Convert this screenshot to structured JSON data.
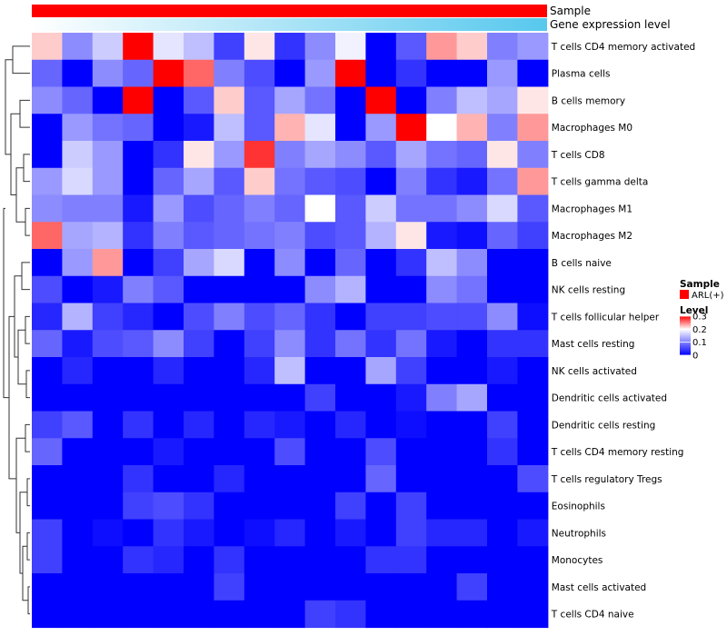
{
  "chart_data": {
    "type": "heatmap",
    "annotation_rows": [
      {
        "label": "Sample",
        "color": "#ff0000"
      },
      {
        "label": "Gene expression level",
        "colors": [
          "#ffffff",
          "#57c8ee"
        ]
      }
    ],
    "rows": [
      "T cells CD4 memory activated",
      "Plasma cells",
      "B cells memory",
      "Macrophages M0",
      "T cells CD8",
      "T cells gamma delta",
      "Macrophages M1",
      "Macrophages M2",
      "B cells naive",
      "NK cells resting",
      "T cells follicular helper",
      "Mast cells resting",
      "NK cells activated",
      "Dendritic cells activated",
      "Dendritic cells resting",
      "T cells CD4 memory resting",
      "T cells regulatory  Tregs",
      "Eosinophils",
      "Neutrophils",
      "Monocytes",
      "Mast cells activated",
      "T cells CD4 naive"
    ],
    "values": [
      [
        0.22,
        0.11,
        0.16,
        0.3,
        0.18,
        0.15,
        0.05,
        0.21,
        0.04,
        0.11,
        0.19,
        0.0,
        0.07,
        0.24,
        0.22,
        0.1,
        0.12
      ],
      [
        0.08,
        0.0,
        0.11,
        0.08,
        0.3,
        0.26,
        0.1,
        0.06,
        0.0,
        0.12,
        0.3,
        0.0,
        0.04,
        0.0,
        0.0,
        0.12,
        0.0
      ],
      [
        0.11,
        0.08,
        0.0,
        0.3,
        0.0,
        0.07,
        0.22,
        0.07,
        0.13,
        0.09,
        0.0,
        0.3,
        0.0,
        0.1,
        0.15,
        0.13,
        0.21
      ],
      [
        0.0,
        0.12,
        0.09,
        0.08,
        0.0,
        0.02,
        0.15,
        0.07,
        0.23,
        0.18,
        0.0,
        0.12,
        0.3,
        0.2,
        0.23,
        0.1,
        0.24
      ],
      [
        0.0,
        0.16,
        0.12,
        0.0,
        0.04,
        0.21,
        0.12,
        0.28,
        0.1,
        0.13,
        0.11,
        0.07,
        0.13,
        0.09,
        0.08,
        0.21,
        0.1
      ],
      [
        0.12,
        0.17,
        0.12,
        0.0,
        0.08,
        0.13,
        0.07,
        0.22,
        0.09,
        0.07,
        0.06,
        0.0,
        0.1,
        0.04,
        0.02,
        0.09,
        0.24
      ],
      [
        0.11,
        0.1,
        0.1,
        0.02,
        0.12,
        0.06,
        0.08,
        0.1,
        0.08,
        0.2,
        0.07,
        0.16,
        0.09,
        0.09,
        0.11,
        0.17,
        0.07
      ],
      [
        0.26,
        0.13,
        0.14,
        0.04,
        0.1,
        0.07,
        0.08,
        0.09,
        0.1,
        0.06,
        0.07,
        0.14,
        0.21,
        0.02,
        0.01,
        0.08,
        0.05
      ],
      [
        0.0,
        0.12,
        0.24,
        0.0,
        0.05,
        0.13,
        0.17,
        0.0,
        0.11,
        0.0,
        0.08,
        0.0,
        0.04,
        0.15,
        0.11,
        0.0,
        0.0
      ],
      [
        0.06,
        0.0,
        0.02,
        0.1,
        0.07,
        0.0,
        0.0,
        0.0,
        0.0,
        0.11,
        0.14,
        0.0,
        0.0,
        0.11,
        0.09,
        0.0,
        0.0
      ],
      [
        0.03,
        0.14,
        0.05,
        0.03,
        0.0,
        0.06,
        0.1,
        0.06,
        0.08,
        0.04,
        0.0,
        0.05,
        0.05,
        0.06,
        0.06,
        0.11,
        0.01
      ],
      [
        0.08,
        0.02,
        0.06,
        0.07,
        0.11,
        0.05,
        0.0,
        0.05,
        0.11,
        0.04,
        0.09,
        0.04,
        0.09,
        0.02,
        0.0,
        0.04,
        0.04
      ],
      [
        0.0,
        0.03,
        0.0,
        0.0,
        0.03,
        0.0,
        0.0,
        0.03,
        0.15,
        0.0,
        0.0,
        0.13,
        0.05,
        0.0,
        0.0,
        0.02,
        0.0
      ],
      [
        0.0,
        0.0,
        0.0,
        0.0,
        0.0,
        0.0,
        0.0,
        0.0,
        0.0,
        0.05,
        0.0,
        0.0,
        0.02,
        0.1,
        0.13,
        0.0,
        0.0
      ],
      [
        0.05,
        0.07,
        0.0,
        0.04,
        0.0,
        0.03,
        0.0,
        0.03,
        0.02,
        0.0,
        0.03,
        0.0,
        0.01,
        0.0,
        0.0,
        0.05,
        0.0
      ],
      [
        0.08,
        0.0,
        0.0,
        0.0,
        0.02,
        0.0,
        0.0,
        0.0,
        0.06,
        0.0,
        0.0,
        0.06,
        0.0,
        0.0,
        0.0,
        0.04,
        0.0
      ],
      [
        0.0,
        0.0,
        0.0,
        0.04,
        0.0,
        0.0,
        0.03,
        0.0,
        0.0,
        0.0,
        0.0,
        0.08,
        0.0,
        0.0,
        0.0,
        0.0,
        0.06
      ],
      [
        0.0,
        0.0,
        0.0,
        0.05,
        0.06,
        0.04,
        0.0,
        0.0,
        0.0,
        0.0,
        0.05,
        0.0,
        0.05,
        0.0,
        0.0,
        0.0,
        0.0
      ],
      [
        0.05,
        0.0,
        0.01,
        0.0,
        0.04,
        0.02,
        0.0,
        0.01,
        0.03,
        0.0,
        0.02,
        0.0,
        0.05,
        0.03,
        0.03,
        0.0,
        0.02
      ],
      [
        0.05,
        0.0,
        0.0,
        0.04,
        0.03,
        0.0,
        0.04,
        0.0,
        0.0,
        0.0,
        0.0,
        0.04,
        0.04,
        0.0,
        0.0,
        0.0,
        0.0
      ],
      [
        0.0,
        0.0,
        0.0,
        0.0,
        0.0,
        0.0,
        0.05,
        0.0,
        0.0,
        0.0,
        0.0,
        0.0,
        0.0,
        0.0,
        0.05,
        0.0,
        0.0
      ],
      [
        0.0,
        0.0,
        0.0,
        0.0,
        0.0,
        0.0,
        0.0,
        0.0,
        0.0,
        0.05,
        0.04,
        0.0,
        0.0,
        0.0,
        0.0,
        0.0,
        0.0
      ]
    ],
    "color_scale": {
      "low": "#0000ff",
      "mid": "#ffffff",
      "high": "#ff0000",
      "min": 0,
      "mid_value": 0.2,
      "max": 0.3
    },
    "legend": {
      "sample_title": "Sample",
      "sample_entry": "ARL(+)",
      "level_title": "Level",
      "ticks": [
        0.3,
        0.2,
        0.1,
        0
      ],
      "tick_labels": [
        "0.3",
        "0.2",
        "0.1",
        "0"
      ]
    },
    "dendrogram": "row-clustering tree on left"
  }
}
